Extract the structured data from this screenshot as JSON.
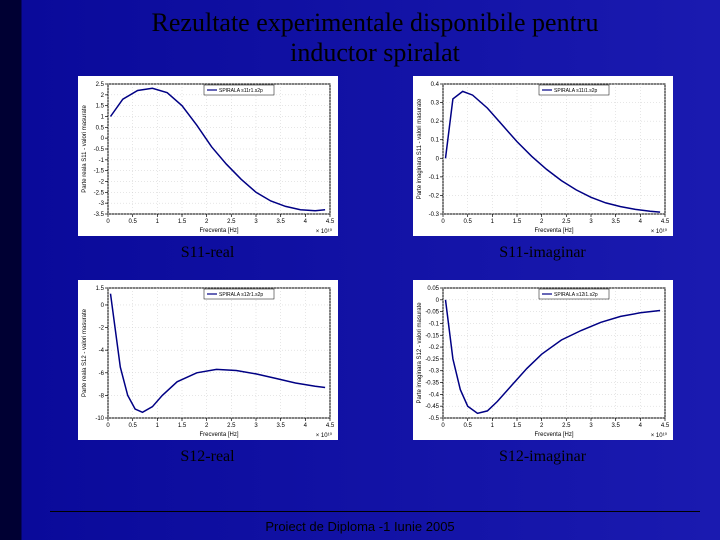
{
  "title_line1": "Rezultate experimentale disponibile pentru",
  "title_line2": "inductor spiralat",
  "footer": "Proiect de Diploma -1 Iunie 2005",
  "plots": [
    {
      "caption": "S11-real",
      "type": "line",
      "xlabel": "Frecventa [Hz]",
      "ylabel": "Parte reala S11 - valori masurate",
      "x_exponent": "× 10¹⁰",
      "legend": "SPIRALA s11r1.s2p",
      "xlim": [
        0,
        4.5
      ],
      "ylim": [
        -3.5,
        2.5
      ],
      "xticks": [
        0,
        0.5,
        1,
        1.5,
        2,
        2.5,
        3,
        3.5,
        4,
        4.5
      ],
      "yticks": [
        -3.5,
        -3,
        -2.5,
        -2,
        -1.5,
        -1,
        -0.5,
        0,
        0.5,
        1,
        1.5,
        2,
        2.5
      ],
      "line_color": "#000084",
      "background_color": "#ffffff",
      "grid_color": "#cccccc",
      "points": [
        [
          0.05,
          1.0
        ],
        [
          0.3,
          1.8
        ],
        [
          0.6,
          2.2
        ],
        [
          0.9,
          2.3
        ],
        [
          1.2,
          2.1
        ],
        [
          1.5,
          1.5
        ],
        [
          1.8,
          0.6
        ],
        [
          2.1,
          -0.4
        ],
        [
          2.4,
          -1.2
        ],
        [
          2.7,
          -1.9
        ],
        [
          3.0,
          -2.5
        ],
        [
          3.3,
          -2.9
        ],
        [
          3.6,
          -3.15
        ],
        [
          3.9,
          -3.3
        ],
        [
          4.2,
          -3.35
        ],
        [
          4.4,
          -3.3
        ]
      ]
    },
    {
      "caption": "S11-imaginar",
      "type": "line",
      "xlabel": "Frecventa [Hz]",
      "ylabel": "Parte imaginara S11 - valori masurate",
      "x_exponent": "× 10¹⁰",
      "legend": "SPIRALA s11i1.s2p",
      "xlim": [
        0,
        4.5
      ],
      "ylim": [
        -0.3,
        0.4
      ],
      "xticks": [
        0,
        0.5,
        1,
        1.5,
        2,
        2.5,
        3,
        3.5,
        4,
        4.5
      ],
      "yticks": [
        -0.3,
        -0.2,
        -0.1,
        0,
        0.1,
        0.2,
        0.3,
        0.4
      ],
      "line_color": "#000084",
      "background_color": "#ffffff",
      "grid_color": "#cccccc",
      "points": [
        [
          0.05,
          0.0
        ],
        [
          0.2,
          0.32
        ],
        [
          0.4,
          0.36
        ],
        [
          0.6,
          0.34
        ],
        [
          0.9,
          0.27
        ],
        [
          1.2,
          0.18
        ],
        [
          1.5,
          0.09
        ],
        [
          1.8,
          0.01
        ],
        [
          2.1,
          -0.06
        ],
        [
          2.4,
          -0.12
        ],
        [
          2.7,
          -0.17
        ],
        [
          3.0,
          -0.21
        ],
        [
          3.3,
          -0.24
        ],
        [
          3.6,
          -0.26
        ],
        [
          3.9,
          -0.275
        ],
        [
          4.2,
          -0.285
        ],
        [
          4.4,
          -0.29
        ]
      ]
    },
    {
      "caption": "S12-real",
      "type": "line",
      "xlabel": "Frecventa [Hz]",
      "ylabel": "Parte reala S12 - valori masurate",
      "x_exponent": "× 10¹⁰",
      "legend": "SPIRALA s12r1.s2p",
      "xlim": [
        0,
        4.5
      ],
      "ylim": [
        -10,
        1.5
      ],
      "xticks": [
        0,
        0.5,
        1,
        1.5,
        2,
        2.5,
        3,
        3.5,
        4,
        4.5
      ],
      "yticks": [
        -10,
        -8,
        -6,
        -4,
        -2,
        0,
        1.5
      ],
      "line_color": "#000084",
      "background_color": "#ffffff",
      "grid_color": "#cccccc",
      "points": [
        [
          0.05,
          1.0
        ],
        [
          0.25,
          -5.5
        ],
        [
          0.4,
          -8.0
        ],
        [
          0.55,
          -9.2
        ],
        [
          0.7,
          -9.5
        ],
        [
          0.9,
          -9.0
        ],
        [
          1.1,
          -8.0
        ],
        [
          1.4,
          -6.8
        ],
        [
          1.8,
          -6.0
        ],
        [
          2.2,
          -5.7
        ],
        [
          2.6,
          -5.8
        ],
        [
          3.0,
          -6.1
        ],
        [
          3.4,
          -6.5
        ],
        [
          3.8,
          -6.9
        ],
        [
          4.2,
          -7.2
        ],
        [
          4.4,
          -7.3
        ]
      ]
    },
    {
      "caption": "S12-imaginar",
      "type": "line",
      "xlabel": "Frecventa [Hz]",
      "ylabel": "Parte imaginara S12 - valori masurate",
      "x_exponent": "× 10¹⁰",
      "legend": "SPIRALA s12i1.s2p",
      "xlim": [
        0,
        4.5
      ],
      "ylim": [
        -0.5,
        0.05
      ],
      "xticks": [
        0,
        0.5,
        1,
        1.5,
        2,
        2.5,
        3,
        3.5,
        4,
        4.5
      ],
      "yticks": [
        -0.5,
        -0.45,
        -0.4,
        -0.35,
        -0.3,
        -0.25,
        -0.2,
        -0.15,
        -0.1,
        -0.05,
        0,
        0.05
      ],
      "line_color": "#000084",
      "background_color": "#ffffff",
      "grid_color": "#cccccc",
      "points": [
        [
          0.05,
          0.0
        ],
        [
          0.2,
          -0.25
        ],
        [
          0.35,
          -0.38
        ],
        [
          0.5,
          -0.45
        ],
        [
          0.7,
          -0.48
        ],
        [
          0.9,
          -0.47
        ],
        [
          1.1,
          -0.43
        ],
        [
          1.4,
          -0.36
        ],
        [
          1.7,
          -0.29
        ],
        [
          2.0,
          -0.23
        ],
        [
          2.4,
          -0.17
        ],
        [
          2.8,
          -0.13
        ],
        [
          3.2,
          -0.095
        ],
        [
          3.6,
          -0.07
        ],
        [
          4.0,
          -0.055
        ],
        [
          4.4,
          -0.045
        ]
      ]
    }
  ]
}
